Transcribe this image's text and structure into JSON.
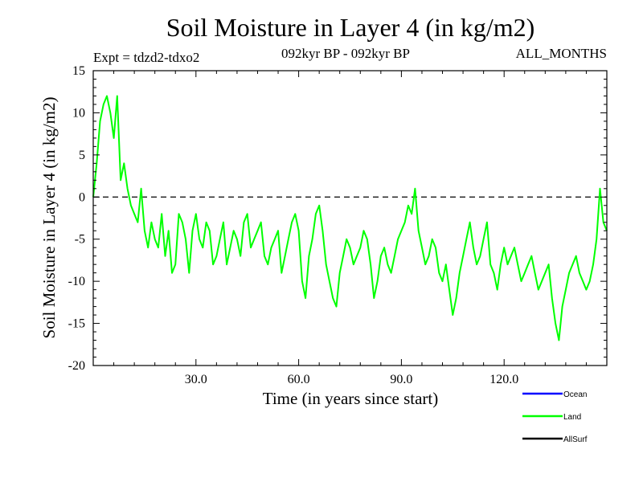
{
  "chart_data": {
    "type": "line",
    "title": "Soil Moisture in Layer 4 (in kg/m2)",
    "subtitle_left": "Expt = tdzd2-tdxo2",
    "subtitle_center": "092kyr BP - 092kyr BP",
    "subtitle_right": "ALL_MONTHS",
    "xlabel": "Time (in years since start)",
    "ylabel": "Soil Moisture in Layer 4 (in kg/m2)",
    "xlim": [
      0,
      150
    ],
    "ylim": [
      -20,
      15
    ],
    "x_ticks": [
      30,
      60,
      90,
      120
    ],
    "x_tick_labels": [
      "30.0",
      "60.0",
      "90.0",
      "120.0"
    ],
    "y_ticks": [
      -20,
      -15,
      -10,
      -5,
      0,
      5,
      10,
      15
    ],
    "y_tick_labels": [
      "-20",
      "-15",
      "-10",
      "-5",
      "0",
      "5",
      "10",
      "15"
    ],
    "zero_line": true,
    "legend": [
      {
        "name": "Ocean",
        "color": "#0000ff"
      },
      {
        "name": "Land",
        "color": "#00ff00"
      },
      {
        "name": "AllSurf",
        "color": "#000000"
      }
    ],
    "series": [
      {
        "name": "Land",
        "color": "#00ff00",
        "x": [
          0,
          1,
          2,
          3,
          4,
          5,
          6,
          7,
          8,
          9,
          10,
          11,
          12,
          13,
          14,
          15,
          16,
          17,
          18,
          19,
          20,
          21,
          22,
          23,
          24,
          25,
          26,
          27,
          28,
          29,
          30,
          31,
          32,
          33,
          34,
          35,
          36,
          37,
          38,
          39,
          40,
          41,
          42,
          43,
          44,
          45,
          46,
          47,
          48,
          49,
          50,
          51,
          52,
          53,
          54,
          55,
          56,
          57,
          58,
          59,
          60,
          61,
          62,
          63,
          64,
          65,
          66,
          67,
          68,
          69,
          70,
          71,
          72,
          73,
          74,
          75,
          76,
          77,
          78,
          79,
          80,
          81,
          82,
          83,
          84,
          85,
          86,
          87,
          88,
          89,
          90,
          91,
          92,
          93,
          94,
          95,
          96,
          97,
          98,
          99,
          100,
          101,
          102,
          103,
          104,
          105,
          106,
          107,
          108,
          109,
          110,
          111,
          112,
          113,
          114,
          115,
          116,
          117,
          118,
          119,
          120,
          121,
          122,
          123,
          124,
          125,
          126,
          127,
          128,
          129,
          130,
          131,
          132,
          133,
          134,
          135,
          136,
          137,
          138,
          139,
          140,
          141,
          142,
          143,
          144,
          145,
          146,
          147,
          148,
          149,
          150
        ],
        "values": [
          0,
          4,
          9,
          11,
          12,
          10,
          7,
          12,
          2,
          4,
          1,
          -1,
          -2,
          -3,
          1,
          -4,
          -6,
          -3,
          -5,
          -6,
          -2,
          -7,
          -4,
          -9,
          -8,
          -2,
          -3,
          -5,
          -9,
          -4,
          -2,
          -5,
          -6,
          -3,
          -4,
          -8,
          -7,
          -5,
          -3,
          -8,
          -6,
          -4,
          -5,
          -7,
          -3,
          -2,
          -6,
          -5,
          -4,
          -3,
          -7,
          -8,
          -6,
          -5,
          -4,
          -9,
          -7,
          -5,
          -3,
          -2,
          -4,
          -10,
          -12,
          -7,
          -5,
          -2,
          -1,
          -4,
          -8,
          -10,
          -12,
          -13,
          -9,
          -7,
          -5,
          -6,
          -8,
          -7,
          -6,
          -4,
          -5,
          -8,
          -12,
          -10,
          -7,
          -6,
          -8,
          -9,
          -7,
          -5,
          -4,
          -3,
          -1,
          -2,
          1,
          -4,
          -6,
          -8,
          -7,
          -5,
          -6,
          -9,
          -10,
          -8,
          -11,
          -14,
          -12,
          -9,
          -7,
          -5,
          -3,
          -6,
          -8,
          -7,
          -5,
          -3,
          -8,
          -9,
          -11,
          -8,
          -6,
          -8,
          -7,
          -6,
          -8,
          -10,
          -9,
          -8,
          -7,
          -9,
          -11,
          -10,
          -9,
          -8,
          -12,
          -15,
          -17,
          -13,
          -11,
          -9,
          -8,
          -7,
          -9,
          -10,
          -11,
          -10,
          -8,
          -5,
          1,
          -3,
          -4
        ]
      }
    ]
  }
}
